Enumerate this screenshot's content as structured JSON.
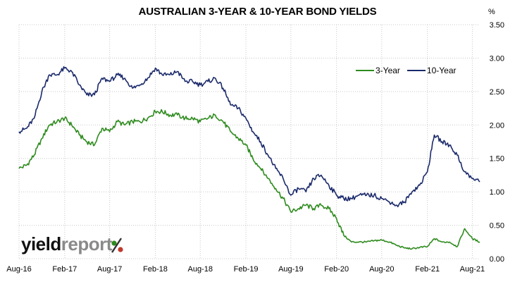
{
  "chart_data": {
    "type": "line",
    "title": "AUSTRALIAN 3-YEAR & 10-YEAR BOND YIELDS",
    "unit": "%",
    "x_tick_labels": [
      "Aug-16",
      "Feb-17",
      "Aug-17",
      "Feb-18",
      "Aug-18",
      "Feb-19",
      "Aug-19",
      "Feb-20",
      "Aug-20",
      "Feb-21",
      "Aug-21"
    ],
    "y_tick_labels": [
      "0.00",
      "0.50",
      "1.00",
      "1.50",
      "2.00",
      "2.50",
      "3.00",
      "3.50"
    ],
    "ylim": [
      0,
      3.5
    ],
    "xlim": [
      "2016-08-01",
      "2021-08-31"
    ],
    "grid": "vertical and horizontal dotted",
    "legend_position": "top-right",
    "series": [
      {
        "name": "3-Year",
        "color": "#2e8b1e",
        "points": [
          [
            "2016-08-01",
            1.35
          ],
          [
            "2016-09-01",
            1.4
          ],
          [
            "2016-10-01",
            1.55
          ],
          [
            "2016-11-01",
            1.8
          ],
          [
            "2016-12-01",
            2.0
          ],
          [
            "2017-01-01",
            2.05
          ],
          [
            "2017-02-01",
            2.1
          ],
          [
            "2017-03-01",
            2.0
          ],
          [
            "2017-04-01",
            1.85
          ],
          [
            "2017-05-01",
            1.75
          ],
          [
            "2017-06-01",
            1.7
          ],
          [
            "2017-07-01",
            1.95
          ],
          [
            "2017-08-01",
            1.9
          ],
          [
            "2017-09-01",
            2.05
          ],
          [
            "2017-10-01",
            2.0
          ],
          [
            "2017-11-01",
            2.05
          ],
          [
            "2017-12-01",
            2.05
          ],
          [
            "2018-01-01",
            2.1
          ],
          [
            "2018-02-01",
            2.2
          ],
          [
            "2018-03-01",
            2.2
          ],
          [
            "2018-04-01",
            2.15
          ],
          [
            "2018-05-01",
            2.15
          ],
          [
            "2018-06-01",
            2.1
          ],
          [
            "2018-07-01",
            2.1
          ],
          [
            "2018-08-01",
            2.05
          ],
          [
            "2018-09-01",
            2.1
          ],
          [
            "2018-10-01",
            2.15
          ],
          [
            "2018-11-01",
            2.05
          ],
          [
            "2018-12-01",
            1.9
          ],
          [
            "2019-01-01",
            1.8
          ],
          [
            "2019-02-01",
            1.7
          ],
          [
            "2019-03-01",
            1.5
          ],
          [
            "2019-04-01",
            1.35
          ],
          [
            "2019-05-01",
            1.2
          ],
          [
            "2019-06-01",
            1.05
          ],
          [
            "2019-07-01",
            0.9
          ],
          [
            "2019-08-01",
            0.7
          ],
          [
            "2019-09-01",
            0.75
          ],
          [
            "2019-10-01",
            0.8
          ],
          [
            "2019-11-01",
            0.75
          ],
          [
            "2019-12-01",
            0.8
          ],
          [
            "2020-01-01",
            0.75
          ],
          [
            "2020-02-01",
            0.6
          ],
          [
            "2020-03-01",
            0.35
          ],
          [
            "2020-04-01",
            0.25
          ],
          [
            "2020-05-01",
            0.25
          ],
          [
            "2020-06-01",
            0.25
          ],
          [
            "2020-07-01",
            0.27
          ],
          [
            "2020-08-01",
            0.28
          ],
          [
            "2020-09-01",
            0.25
          ],
          [
            "2020-10-01",
            0.2
          ],
          [
            "2020-11-01",
            0.16
          ],
          [
            "2020-12-01",
            0.15
          ],
          [
            "2021-01-01",
            0.17
          ],
          [
            "2021-02-01",
            0.18
          ],
          [
            "2021-03-01",
            0.3
          ],
          [
            "2021-04-01",
            0.25
          ],
          [
            "2021-05-01",
            0.25
          ],
          [
            "2021-06-01",
            0.18
          ],
          [
            "2021-07-01",
            0.45
          ],
          [
            "2021-08-01",
            0.3
          ],
          [
            "2021-08-31",
            0.25
          ]
        ]
      },
      {
        "name": "10-Year",
        "color": "#1b2a6b",
        "points": [
          [
            "2016-08-01",
            1.9
          ],
          [
            "2016-09-01",
            1.95
          ],
          [
            "2016-10-01",
            2.1
          ],
          [
            "2016-11-01",
            2.5
          ],
          [
            "2016-12-01",
            2.75
          ],
          [
            "2017-01-01",
            2.75
          ],
          [
            "2017-02-01",
            2.85
          ],
          [
            "2017-03-01",
            2.8
          ],
          [
            "2017-04-01",
            2.6
          ],
          [
            "2017-05-01",
            2.45
          ],
          [
            "2017-06-01",
            2.45
          ],
          [
            "2017-07-01",
            2.7
          ],
          [
            "2017-08-01",
            2.65
          ],
          [
            "2017-09-01",
            2.75
          ],
          [
            "2017-10-01",
            2.7
          ],
          [
            "2017-11-01",
            2.55
          ],
          [
            "2017-12-01",
            2.6
          ],
          [
            "2018-01-01",
            2.7
          ],
          [
            "2018-02-01",
            2.85
          ],
          [
            "2018-03-01",
            2.75
          ],
          [
            "2018-04-01",
            2.75
          ],
          [
            "2018-05-01",
            2.8
          ],
          [
            "2018-06-01",
            2.65
          ],
          [
            "2018-07-01",
            2.65
          ],
          [
            "2018-08-01",
            2.6
          ],
          [
            "2018-09-01",
            2.65
          ],
          [
            "2018-10-01",
            2.7
          ],
          [
            "2018-11-01",
            2.55
          ],
          [
            "2018-12-01",
            2.3
          ],
          [
            "2019-01-01",
            2.25
          ],
          [
            "2019-02-01",
            2.1
          ],
          [
            "2019-03-01",
            1.9
          ],
          [
            "2019-04-01",
            1.75
          ],
          [
            "2019-05-01",
            1.55
          ],
          [
            "2019-06-01",
            1.35
          ],
          [
            "2019-07-01",
            1.2
          ],
          [
            "2019-08-01",
            0.95
          ],
          [
            "2019-09-01",
            1.05
          ],
          [
            "2019-10-01",
            1.0
          ],
          [
            "2019-11-01",
            1.2
          ],
          [
            "2019-12-01",
            1.25
          ],
          [
            "2020-01-01",
            1.1
          ],
          [
            "2020-02-01",
            0.95
          ],
          [
            "2020-03-01",
            0.9
          ],
          [
            "2020-04-01",
            0.9
          ],
          [
            "2020-05-01",
            0.95
          ],
          [
            "2020-06-01",
            0.95
          ],
          [
            "2020-07-01",
            0.95
          ],
          [
            "2020-08-01",
            0.9
          ],
          [
            "2020-09-01",
            0.85
          ],
          [
            "2020-10-01",
            0.8
          ],
          [
            "2020-11-01",
            0.85
          ],
          [
            "2020-12-01",
            1.0
          ],
          [
            "2021-01-01",
            1.1
          ],
          [
            "2021-02-01",
            1.3
          ],
          [
            "2021-03-01",
            1.85
          ],
          [
            "2021-04-01",
            1.75
          ],
          [
            "2021-05-01",
            1.7
          ],
          [
            "2021-06-01",
            1.55
          ],
          [
            "2021-07-01",
            1.3
          ],
          [
            "2021-08-01",
            1.2
          ],
          [
            "2021-08-31",
            1.15
          ]
        ]
      }
    ]
  },
  "logo": {
    "part1": "yield",
    "part2": "report",
    "symbol": "%"
  }
}
